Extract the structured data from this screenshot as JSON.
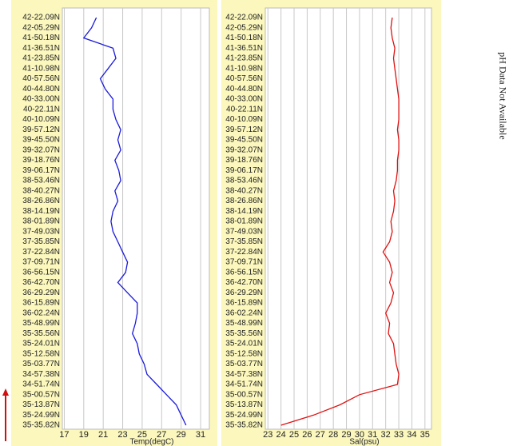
{
  "chart_data": [
    {
      "type": "line",
      "x_label": "Temp(degC)",
      "categories": [
        "42-22.09N",
        "42-05.29N",
        "41-50.18N",
        "41-36.51N",
        "41-23.85N",
        "41-10.98N",
        "40-57.56N",
        "40-44.80N",
        "40-33.00N",
        "40-22.11N",
        "40-10.09N",
        "39-57.12N",
        "39-45.50N",
        "39-32.07N",
        "39-18.76N",
        "39-06.17N",
        "38-53.46N",
        "38-40.27N",
        "38-26.86N",
        "38-14.19N",
        "38-01.89N",
        "37-49.03N",
        "37-35.85N",
        "37-22.84N",
        "37-09.71N",
        "36-56.15N",
        "36-42.70N",
        "36-29.29N",
        "36-15.89N",
        "36-02.24N",
        "35-48.99N",
        "35-35.56N",
        "35-24.01N",
        "35-12.58N",
        "35-03.77N",
        "34-57.38N",
        "34-51.74N",
        "35-00.57N",
        "35-13.87N",
        "35-24.99N",
        "35-35.82N"
      ],
      "values": [
        20.3,
        19.8,
        19,
        22,
        22.3,
        21.5,
        20.7,
        21.2,
        22,
        22,
        22.3,
        22.8,
        22.5,
        22.8,
        22.2,
        22.6,
        22.8,
        22.2,
        22.5,
        22,
        21.8,
        22,
        22.5,
        23,
        23.5,
        23.3,
        22.5,
        23.5,
        24.5,
        24.5,
        24.3,
        24,
        24.5,
        24.7,
        25.2,
        25.5,
        26.5,
        27.5,
        28.5,
        29,
        29.5
      ],
      "color": "#1a1adc",
      "xlim": [
        16.8,
        31.9
      ],
      "xticks": [
        17,
        19,
        21,
        23,
        25,
        27,
        29,
        31
      ],
      "grid": true
    },
    {
      "type": "line",
      "x_label": "Sal(psu)",
      "categories": [
        "42-22.09N",
        "42-05.29N",
        "41-50.18N",
        "41-36.51N",
        "41-23.85N",
        "41-10.98N",
        "40-57.56N",
        "40-44.80N",
        "40-33.00N",
        "40-22.11N",
        "40-10.09N",
        "39-57.12N",
        "39-45.50N",
        "39-32.07N",
        "39-18.76N",
        "39-06.17N",
        "38-53.46N",
        "38-40.27N",
        "38-26.86N",
        "38-14.19N",
        "38-01.89N",
        "37-49.03N",
        "37-35.85N",
        "37-22.84N",
        "37-09.71N",
        "36-56.15N",
        "36-42.70N",
        "36-29.29N",
        "36-15.89N",
        "36-02.24N",
        "35-48.99N",
        "35-35.56N",
        "35-24.01N",
        "35-12.58N",
        "35-03.77N",
        "34-57.38N",
        "34-51.74N",
        "35-00.57N",
        "35-13.87N",
        "35-24.99N",
        "35-35.82N"
      ],
      "values": [
        32.5,
        32.4,
        32.5,
        32.7,
        32.6,
        32.7,
        32.8,
        32.9,
        33,
        33,
        33,
        32.9,
        33,
        33,
        32.9,
        32.9,
        32.8,
        32.6,
        32.7,
        32.6,
        32.4,
        32.5,
        32.3,
        31.8,
        32.3,
        32.5,
        32.3,
        32.6,
        32.4,
        32,
        32.3,
        32.2,
        32.6,
        32.7,
        32.8,
        33,
        32.9,
        30,
        28.5,
        26.5,
        24
      ],
      "color": "#e01010",
      "xlim": [
        22.8,
        35.5
      ],
      "xticks": [
        23,
        24,
        25,
        26,
        27,
        28,
        29,
        30,
        31,
        32,
        33,
        34,
        35
      ],
      "grid": true
    }
  ],
  "annotation": "pH Data Not Available"
}
